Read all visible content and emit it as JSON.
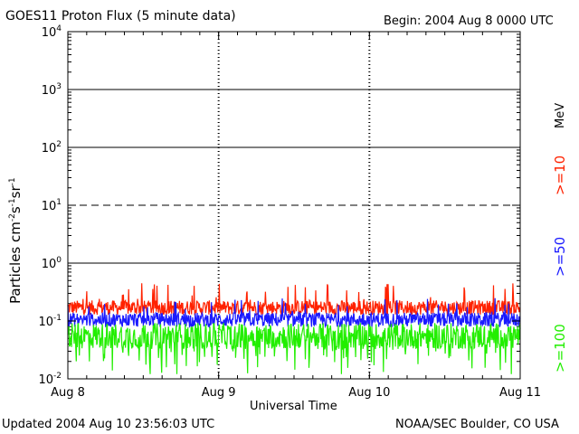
{
  "header": {
    "title": "GOES11 Proton Flux (5 minute data)",
    "begin": "Begin: 2004 Aug 8 0000 UTC"
  },
  "footer": {
    "updated": "Updated 2004 Aug 10 23:56:03 UTC",
    "credit": "NOAA/SEC Boulder, CO USA"
  },
  "chart_data": {
    "type": "line",
    "title": "GOES11 Proton Flux (5 minute data)",
    "xlabel": "Universal Time",
    "ylabel": "Particles cm-2s-1sr-1",
    "y_scale": "log",
    "ylim": [
      0.01,
      10000
    ],
    "xlim": [
      0,
      3
    ],
    "x_ticks": [
      {
        "value": 0,
        "label": "Aug 8"
      },
      {
        "value": 1,
        "label": "Aug 9"
      },
      {
        "value": 2,
        "label": "Aug 10"
      },
      {
        "value": 3,
        "label": "Aug 11"
      }
    ],
    "y_ticks": [
      {
        "value": 0.01,
        "base": "10",
        "exp": "-2"
      },
      {
        "value": 0.1,
        "base": "10",
        "exp": "-1"
      },
      {
        "value": 1,
        "base": "10",
        "exp": "0"
      },
      {
        "value": 10,
        "base": "10",
        "exp": "1"
      },
      {
        "value": 100,
        "base": "10",
        "exp": "2"
      },
      {
        "value": 1000,
        "base": "10",
        "exp": "3"
      },
      {
        "value": 10000,
        "base": "10",
        "exp": "4"
      }
    ],
    "reference_lines": [
      {
        "value": 1,
        "style": "solid"
      },
      {
        "value": 10,
        "style": "dashed"
      },
      {
        "value": 100,
        "style": "solid"
      },
      {
        "value": 1000,
        "style": "solid"
      }
    ],
    "unit_label": "MeV",
    "series": [
      {
        "name": ">=10",
        "color": "#ff2200",
        "base": 0.17,
        "spread": 0.25,
        "spike_max": 0.45
      },
      {
        "name": ">=50",
        "color": "#1a1aff",
        "base": 0.105,
        "spread": 0.25,
        "spike_max": 0.25
      },
      {
        "name": ">=100",
        "color": "#22ee00",
        "base": 0.055,
        "spread": 0.45,
        "spike_min": 0.012
      }
    ]
  }
}
